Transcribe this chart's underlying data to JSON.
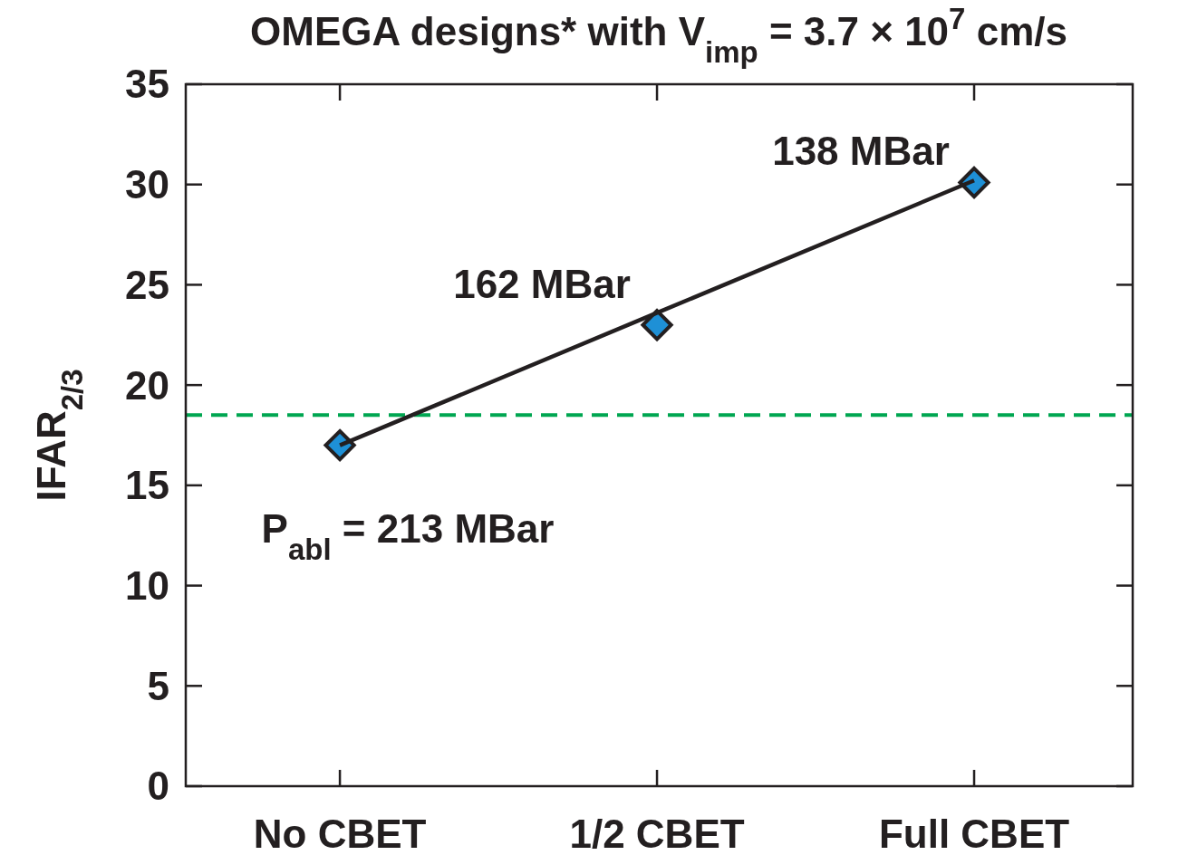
{
  "chart_data": {
    "type": "scatter",
    "title": "OMEGA designs* with V$_{imp}$ = 3.7 × 10$^{7}$ cm/s",
    "ylabel": "IFAR$_{2/3}$",
    "categories": [
      "No CBET",
      "1/2 CBET",
      "Full CBET"
    ],
    "ylim": [
      0,
      35
    ],
    "yticks": [
      0,
      5,
      10,
      15,
      20,
      25,
      30,
      35
    ],
    "series": [
      {
        "values": [
          17,
          23,
          30.1
        ],
        "color": "#1e90d6",
        "marker": "diamond"
      },
      {
        "type": "line",
        "values": [
          17,
          23.6,
          30.2
        ],
        "color": "#231f20",
        "line_style": "solid",
        "marker": "none"
      }
    ],
    "ref_lines": [
      {
        "axis": "y",
        "value": 18.5,
        "color": "#00a651",
        "line_style": "dashed"
      }
    ],
    "annotations": [
      "P$_{abl}$ = 213 MBar",
      "162 MBar",
      "138 MBar"
    ]
  }
}
